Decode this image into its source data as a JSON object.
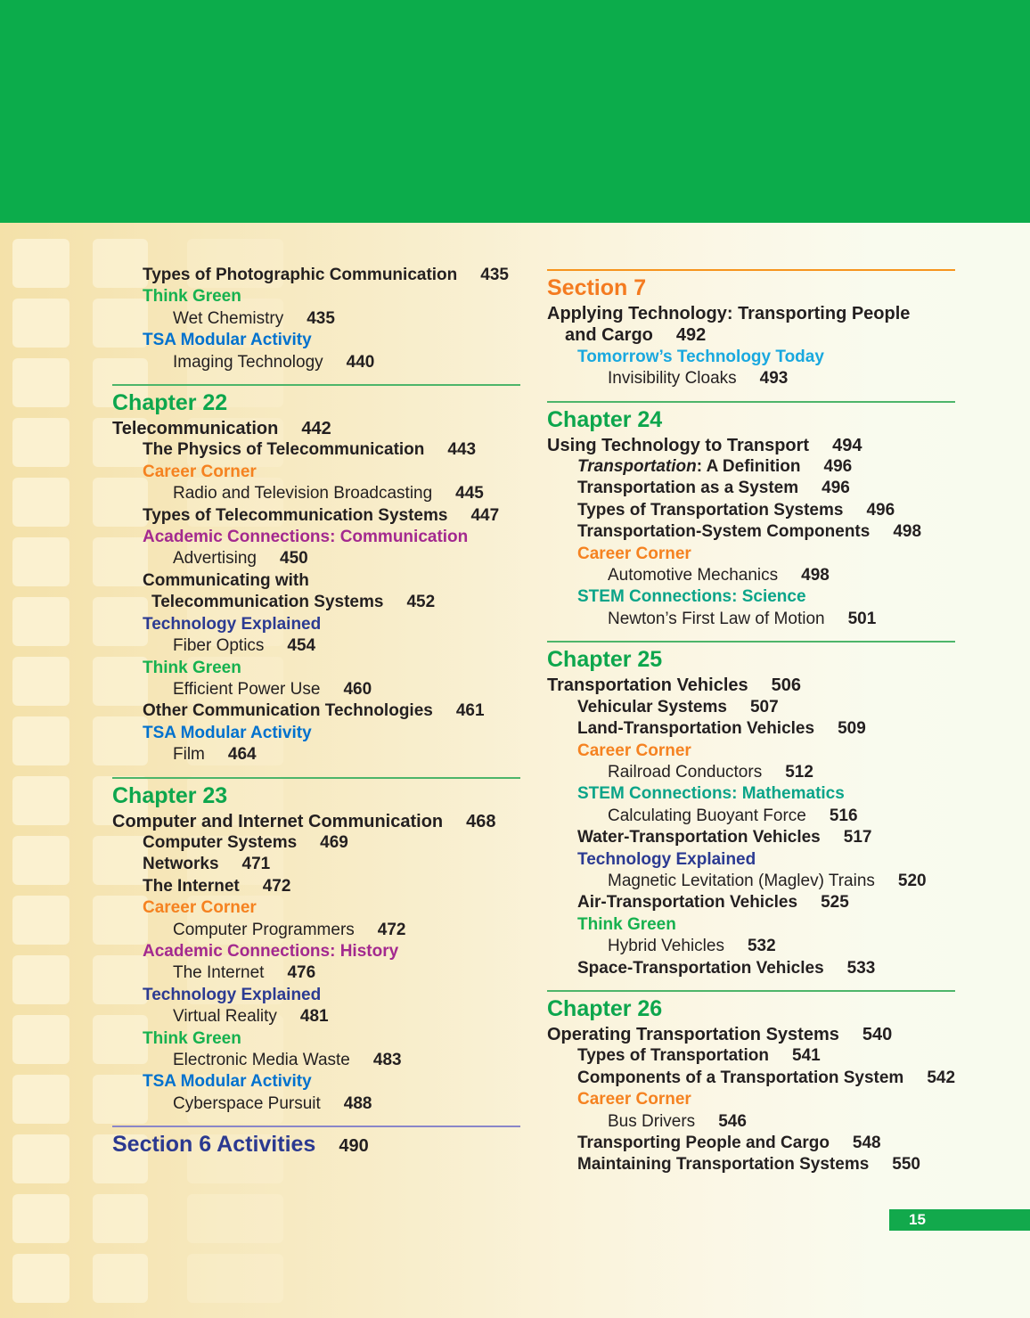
{
  "page": {
    "number": "15"
  },
  "colors": {
    "banner_green": "#0cac4b",
    "chapter_green": "#0da64d",
    "think_green": "#16b14f",
    "career_orange": "#f58220",
    "academic_purple": "#a3298f",
    "tech_navy": "#2b3a92",
    "tsa_blue": "#0071ce",
    "stem_teal": "#0aa489",
    "ttt_cyan": "#19a8df",
    "section_orange": "#f47b20",
    "section_blue": "#2b3990",
    "rule_green": "#4db56a",
    "rule_orange": "#f7941d",
    "rule_purple": "#8a86c8",
    "text_black": "#231f20",
    "pagebar_green": "#12a94c"
  },
  "toc": {
    "left_column": {
      "blocks": [
        {
          "rule": null,
          "heading": null,
          "entries": [
            {
              "style": "s1b",
              "text": "Types of Photographic Communication",
              "page": "435"
            },
            {
              "style": "think",
              "text": "Think Green"
            },
            {
              "style": "s2",
              "text": "Wet Chemistry",
              "page": "435"
            },
            {
              "style": "tsa",
              "text": "TSA Modular Activity"
            },
            {
              "style": "s2",
              "text": "Imaging Technology",
              "page": "440"
            }
          ]
        },
        {
          "rule": "green",
          "heading": {
            "style": "chapter",
            "text": "Chapter 22"
          },
          "entries": [
            {
              "style": "s0",
              "text": "Telecommunication",
              "page": "442"
            },
            {
              "style": "s1b",
              "text": "The Physics of Telecommunication",
              "page": "443"
            },
            {
              "style": "career",
              "text": "Career Corner"
            },
            {
              "style": "s2",
              "text": "Radio and Television Broadcasting",
              "page": "445"
            },
            {
              "style": "s1b",
              "text": "Types of Telecommunication Systems",
              "page": "447"
            },
            {
              "style": "academic",
              "text": "Academic Connections: Communication"
            },
            {
              "style": "s2",
              "text": "Advertising",
              "page": "450"
            },
            {
              "style": "s1b",
              "text": "Communicating with"
            },
            {
              "style": "s1c",
              "text": "Telecommunication Systems",
              "page": "452"
            },
            {
              "style": "tech",
              "text": "Technology Explained"
            },
            {
              "style": "s2",
              "text": "Fiber Optics",
              "page": "454"
            },
            {
              "style": "think",
              "text": "Think Green"
            },
            {
              "style": "s2",
              "text": "Efficient Power Use",
              "page": "460"
            },
            {
              "style": "s1b",
              "text": "Other Communication Technologies",
              "page": "461"
            },
            {
              "style": "tsa",
              "text": "TSA Modular Activity"
            },
            {
              "style": "s2",
              "text": "Film",
              "page": "464"
            }
          ]
        },
        {
          "rule": "green",
          "heading": {
            "style": "chapter",
            "text": "Chapter 23"
          },
          "entries": [
            {
              "style": "s0",
              "text": "Computer and Internet Communication",
              "page": "468"
            },
            {
              "style": "s1b",
              "text": "Computer Systems",
              "page": "469"
            },
            {
              "style": "s1b",
              "text": "Networks",
              "page": "471"
            },
            {
              "style": "s1b",
              "text": "The Internet",
              "page": "472"
            },
            {
              "style": "career",
              "text": "Career Corner"
            },
            {
              "style": "s2",
              "text": "Computer Programmers",
              "page": "472"
            },
            {
              "style": "academic",
              "text": "Academic Connections: History"
            },
            {
              "style": "s2",
              "text": "The Internet",
              "page": "476"
            },
            {
              "style": "tech",
              "text": "Technology Explained"
            },
            {
              "style": "s2",
              "text": "Virtual Reality",
              "page": "481"
            },
            {
              "style": "think",
              "text": "Think Green"
            },
            {
              "style": "s2",
              "text": "Electronic Media Waste",
              "page": "483"
            },
            {
              "style": "tsa",
              "text": "TSA Modular Activity"
            },
            {
              "style": "s2",
              "text": "Cyberspace Pursuit",
              "page": "488"
            }
          ]
        },
        {
          "rule": "purple",
          "heading": {
            "style": "section-blue",
            "text": "Section 6 Activities",
            "page": "490"
          },
          "entries": []
        }
      ]
    },
    "right_column": {
      "blocks": [
        {
          "rule": "orange",
          "heading": {
            "style": "section-orange",
            "text": "Section 7"
          },
          "entries": [
            {
              "style": "s0",
              "text": "Applying Technology: Transporting People"
            },
            {
              "style": "s0c",
              "text": "and Cargo",
              "page": "492"
            },
            {
              "style": "ttt",
              "text": "Tomorrow’s Technology Today"
            },
            {
              "style": "s2",
              "text": "Invisibility Cloaks",
              "page": "493"
            }
          ]
        },
        {
          "rule": "green",
          "heading": {
            "style": "chapter",
            "text": "Chapter 24"
          },
          "entries": [
            {
              "style": "s0",
              "text": "Using Technology to Transport",
              "page": "494"
            },
            {
              "style": "s1b",
              "italic": "Transportation",
              "text": ": A Definition",
              "page": "496"
            },
            {
              "style": "s1b",
              "text": "Transportation as a System",
              "page": "496"
            },
            {
              "style": "s1b",
              "text": "Types of Transportation Systems",
              "page": "496"
            },
            {
              "style": "s1b",
              "text": "Transportation-System Components",
              "page": "498"
            },
            {
              "style": "career",
              "text": "Career Corner"
            },
            {
              "style": "s2",
              "text": "Automotive Mechanics",
              "page": "498"
            },
            {
              "style": "stem",
              "text": "STEM Connections: Science"
            },
            {
              "style": "s2",
              "text": "Newton’s First Law of Motion",
              "page": "501"
            }
          ]
        },
        {
          "rule": "green",
          "heading": {
            "style": "chapter",
            "text": "Chapter 25"
          },
          "entries": [
            {
              "style": "s0",
              "text": "Transportation Vehicles",
              "page": "506"
            },
            {
              "style": "s1b",
              "text": "Vehicular Systems",
              "page": "507"
            },
            {
              "style": "s1b",
              "text": "Land-Transportation Vehicles",
              "page": "509"
            },
            {
              "style": "career",
              "text": "Career Corner"
            },
            {
              "style": "s2",
              "text": "Railroad Conductors",
              "page": "512"
            },
            {
              "style": "stem",
              "text": "STEM Connections: Mathematics"
            },
            {
              "style": "s2",
              "text": "Calculating Buoyant Force",
              "page": "516"
            },
            {
              "style": "s1b",
              "text": "Water-Transportation Vehicles",
              "page": "517"
            },
            {
              "style": "tech",
              "text": "Technology Explained"
            },
            {
              "style": "s2",
              "text": "Magnetic Levitation (Maglev) Trains",
              "page": "520"
            },
            {
              "style": "s1b",
              "text": "Air-Transportation Vehicles",
              "page": "525"
            },
            {
              "style": "think",
              "text": "Think Green"
            },
            {
              "style": "s2",
              "text": "Hybrid Vehicles",
              "page": "532"
            },
            {
              "style": "s1b",
              "text": "Space-Transportation Vehicles",
              "page": "533"
            }
          ]
        },
        {
          "rule": "green",
          "heading": {
            "style": "chapter",
            "text": "Chapter 26"
          },
          "entries": [
            {
              "style": "s0",
              "text": "Operating Transportation Systems",
              "page": "540"
            },
            {
              "style": "s1b",
              "text": "Types of Transportation",
              "page": "541"
            },
            {
              "style": "s1b",
              "text": "Components of a Transportation System",
              "page": "542"
            },
            {
              "style": "career",
              "text": "Career Corner"
            },
            {
              "style": "s2",
              "text": "Bus Drivers",
              "page": "546"
            },
            {
              "style": "s1b",
              "text": "Transporting People and Cargo",
              "page": "548"
            },
            {
              "style": "s1b",
              "text": "Maintaining Transportation Systems",
              "page": "550"
            }
          ]
        }
      ]
    }
  }
}
